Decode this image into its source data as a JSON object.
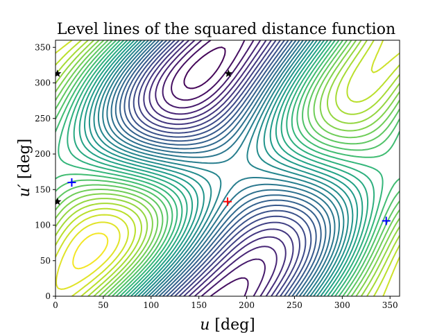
{
  "chart_data": {
    "type": "contour",
    "title": "Level lines of the squared distance function",
    "xlabel_var": "u",
    "xlabel_unit": " [deg]",
    "ylabel_var": "u′",
    "ylabel_unit": " [deg]",
    "xlim": [
      0,
      360
    ],
    "ylim": [
      0,
      360
    ],
    "xticks": [
      0,
      50,
      100,
      150,
      200,
      250,
      300,
      350
    ],
    "yticks": [
      0,
      50,
      100,
      150,
      200,
      250,
      300,
      350
    ],
    "colormap": "viridis",
    "grid": false,
    "markers": [
      {
        "kind": "cross",
        "color": "#ff0000",
        "x": 180,
        "y": 133
      },
      {
        "kind": "cross",
        "color": "#0000ff",
        "x": 17,
        "y": 160
      },
      {
        "kind": "cross",
        "color": "#0000ff",
        "x": 346,
        "y": 106
      },
      {
        "kind": "star",
        "color": "#000000",
        "x": 2,
        "y": 313
      },
      {
        "kind": "star",
        "color": "#000000",
        "x": 2,
        "y": 133
      },
      {
        "kind": "star",
        "color": "#000000",
        "x": 181,
        "y": 313
      }
    ]
  }
}
